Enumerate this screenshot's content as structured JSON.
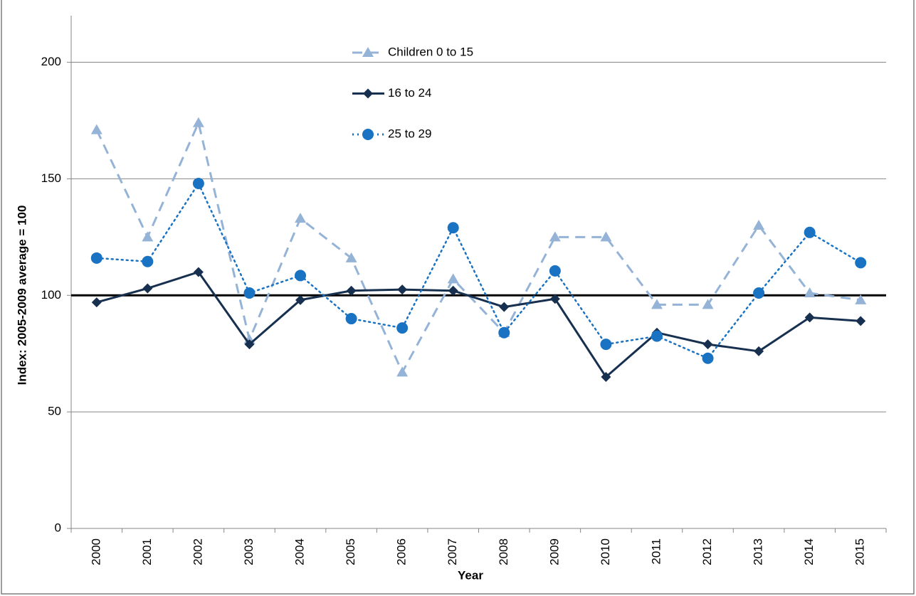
{
  "chart_data": {
    "type": "line",
    "y_axis_label": "Index: 2005-2009 average = 100",
    "x_axis_label": "Year",
    "categories": [
      "2000",
      "2001",
      "2002",
      "2003",
      "2004",
      "2005",
      "2006",
      "2007",
      "2008",
      "2009",
      "2010",
      "2011",
      "2012",
      "2013",
      "2014",
      "2015"
    ],
    "series": [
      {
        "name": "Children 0 to 15",
        "color": "#95b3d7",
        "dash": "dashed",
        "marker": "triangle",
        "values": [
          171,
          125,
          174,
          81,
          133,
          116,
          67,
          107,
          84,
          125,
          125,
          96,
          96,
          130,
          101,
          98
        ]
      },
      {
        "name": "16 to 24",
        "color": "#17304f",
        "dash": "solid",
        "marker": "diamond",
        "values": [
          97,
          103,
          110,
          79,
          98,
          102,
          102.5,
          102,
          95,
          98.5,
          65,
          84,
          79,
          76,
          90.5,
          89
        ]
      },
      {
        "name": "25 to 29",
        "color": "#1a73c2",
        "dash": "dotted",
        "marker": "circle",
        "values": [
          116,
          114.5,
          148,
          101,
          108.5,
          90,
          86,
          129,
          84,
          110.5,
          79,
          82.5,
          73,
          101,
          127,
          114
        ]
      }
    ],
    "reference_line": {
      "value": 100,
      "color": "#000000"
    },
    "ylim": [
      0,
      220
    ],
    "yticks": [
      0,
      50,
      100,
      150,
      200
    ],
    "grid": true,
    "legend": "top-center"
  }
}
